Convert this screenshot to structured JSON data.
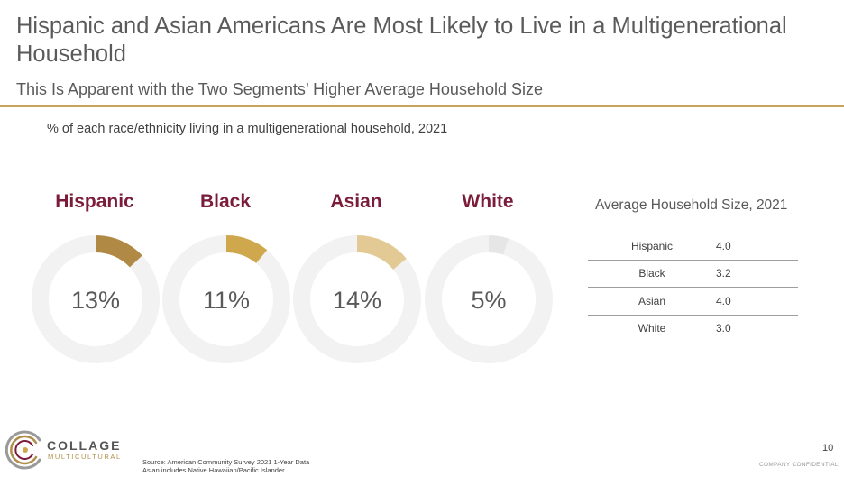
{
  "header": {
    "title": "Hispanic and Asian Americans Are Most Likely to Live in a Multigenerational Household",
    "subtitle": "This Is Apparent with the Two Segments’ Higher Average Household Size"
  },
  "chart_data": [
    {
      "type": "pie",
      "title": "% of each race/ethnicity living in a multigenerational household, 2021",
      "categories": [
        "Hispanic",
        "Black",
        "Asian",
        "White"
      ],
      "values": [
        13,
        11,
        14,
        5
      ],
      "value_labels": [
        "13%",
        "11%",
        "14%",
        "5%"
      ],
      "colors": [
        "#b08a45",
        "#cfa84e",
        "#e3ca94",
        "#e6e6e6"
      ],
      "track_color": "#f2f2f2",
      "label_color": "#7b1c3a"
    },
    {
      "type": "table",
      "title": "Average Household Size, 2021",
      "rows": [
        {
          "label": "Hispanic",
          "value": "4.0"
        },
        {
          "label": "Black",
          "value": "3.2"
        },
        {
          "label": "Asian",
          "value": "4.0"
        },
        {
          "label": "White",
          "value": "3.0"
        }
      ]
    }
  ],
  "footer": {
    "logo_word": "COLLAGE",
    "logo_sub": "MULTICULTURAL",
    "source_line1": "Source: American Community Survey 2021 1-Year Data",
    "source_line2": "Asian includes Native Hawaiian/Pacific Islander",
    "page_number": "10",
    "confidential": "COMPANY CONFIDENTIAL"
  }
}
